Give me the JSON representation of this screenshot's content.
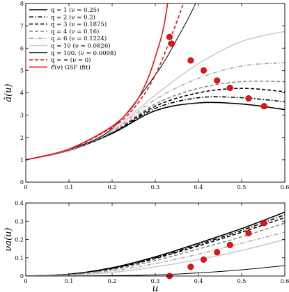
{
  "chart_data": [
    {
      "type": "line",
      "ylabel": "â(u)",
      "xlabel": "",
      "xlim": [
        0,
        0.6
      ],
      "ylim": [
        0,
        8
      ],
      "xticks": [
        "0",
        "0.1",
        "0.2",
        "0.3",
        "0.4",
        "0.5",
        "0.6"
      ],
      "yticks": [
        "0",
        "1",
        "2",
        "3",
        "4",
        "5",
        "6",
        "7",
        "8"
      ],
      "grid": false,
      "legend_position": "top-left",
      "series": [
        {
          "name": "q = 1 (ν = 0.25)",
          "color": "#000000",
          "dash": "solid",
          "x": [
            0,
            0.1,
            0.2,
            0.3,
            0.4,
            0.5,
            0.6
          ],
          "y": [
            1.0,
            1.42,
            2.18,
            3.2,
            3.55,
            3.5,
            3.25
          ]
        },
        {
          "name": "q = 2 (ν = 0.2)",
          "color": "#000000",
          "dash": "dashdot",
          "x": [
            0,
            0.1,
            0.2,
            0.3,
            0.4,
            0.5,
            0.6
          ],
          "y": [
            1.0,
            1.43,
            2.2,
            3.3,
            3.78,
            3.78,
            3.6
          ]
        },
        {
          "name": "q = 3 (ν = 0.1875)",
          "color": "#000000",
          "dash": "dashed",
          "x": [
            0,
            0.1,
            0.2,
            0.3,
            0.4,
            0.5,
            0.6
          ],
          "y": [
            1.0,
            1.43,
            2.22,
            3.4,
            4.0,
            4.2,
            4.05
          ]
        },
        {
          "name": "q = 4 (ν = 0.16)",
          "color": "#888888",
          "dash": "dashed",
          "x": [
            0,
            0.1,
            0.2,
            0.3,
            0.4,
            0.5,
            0.6
          ],
          "y": [
            1.0,
            1.43,
            2.24,
            3.5,
            4.2,
            4.5,
            4.5
          ]
        },
        {
          "name": "q = 6 (ν = 0.1224)",
          "color": "#aaaaaa",
          "dash": "dashdot",
          "x": [
            0,
            0.1,
            0.2,
            0.3,
            0.4,
            0.5,
            0.6
          ],
          "y": [
            1.0,
            1.44,
            2.28,
            3.7,
            4.65,
            5.2,
            5.35
          ]
        },
        {
          "name": "q = 10 (ν = 0.0826)",
          "color": "#cccccc",
          "dash": "solid",
          "x": [
            0,
            0.1,
            0.2,
            0.3,
            0.4,
            0.5,
            0.6
          ],
          "y": [
            1.0,
            1.45,
            2.33,
            3.9,
            5.3,
            6.3,
            6.75
          ]
        },
        {
          "name": "q = 100. (ν = 0.0098)",
          "color": "#000000",
          "dash": "solid",
          "thin": true,
          "x": [
            0,
            0.1,
            0.2,
            0.3,
            0.35,
            0.4,
            0.45
          ],
          "y": [
            1.0,
            1.46,
            2.4,
            4.8,
            6.4,
            8.3,
            11.0
          ]
        },
        {
          "name": "q = ∞ (ν = 0)",
          "color": "#ee1111",
          "dash": "dashed",
          "x": [
            0,
            0.1,
            0.2,
            0.25,
            0.3,
            0.35,
            0.4
          ],
          "y": [
            1.0,
            1.47,
            2.45,
            3.3,
            4.8,
            7.2,
            10.0
          ]
        },
        {
          "name": "𝒪(ν) GSF (fit)",
          "color": "#ee1111",
          "dash": "solid",
          "x": [
            0,
            0.1,
            0.2,
            0.25,
            0.28,
            0.3,
            0.32,
            0.34
          ],
          "y": [
            1.0,
            1.48,
            2.5,
            3.45,
            4.5,
            5.6,
            7.0,
            9.5
          ]
        }
      ],
      "markers": {
        "color": "#ee1111",
        "x": [
          0.333,
          0.338,
          0.382,
          0.412,
          0.443,
          0.473,
          0.516,
          0.552
        ],
        "y": [
          6.5,
          6.2,
          5.45,
          5.0,
          4.55,
          4.22,
          3.75,
          3.4
        ]
      }
    },
    {
      "type": "line",
      "ylabel": "νa(u)",
      "xlabel": "u",
      "xlim": [
        0,
        0.6
      ],
      "ylim": [
        0,
        0.4
      ],
      "xticks": [
        "0",
        "0.1",
        "0.2",
        "0.3",
        "0.4",
        "0.5",
        "0.6"
      ],
      "yticks": [
        "0",
        "0.1",
        "0.2",
        "0.3",
        "0.4"
      ],
      "grid": false,
      "series": [
        {
          "color": "#000000",
          "dash": "solid",
          "x": [
            0,
            0.1,
            0.2,
            0.3,
            0.4,
            0.5,
            0.6
          ],
          "y": [
            0.0,
            0.01,
            0.045,
            0.105,
            0.18,
            0.26,
            0.35
          ]
        },
        {
          "color": "#000000",
          "dash": "dashdot",
          "x": [
            0,
            0.1,
            0.2,
            0.3,
            0.4,
            0.5,
            0.6
          ],
          "y": [
            0.0,
            0.009,
            0.042,
            0.1,
            0.172,
            0.25,
            0.335
          ]
        },
        {
          "color": "#000000",
          "dash": "dashed",
          "x": [
            0,
            0.1,
            0.2,
            0.3,
            0.4,
            0.5,
            0.6
          ],
          "y": [
            0.0,
            0.008,
            0.04,
            0.096,
            0.165,
            0.24,
            0.32
          ]
        },
        {
          "color": "#888888",
          "dash": "dashed",
          "x": [
            0,
            0.1,
            0.2,
            0.3,
            0.4,
            0.5,
            0.6
          ],
          "y": [
            0.0,
            0.007,
            0.035,
            0.085,
            0.148,
            0.215,
            0.29
          ]
        },
        {
          "color": "#aaaaaa",
          "dash": "dashdot",
          "x": [
            0,
            0.1,
            0.2,
            0.3,
            0.4,
            0.5,
            0.6
          ],
          "y": [
            0.0,
            0.005,
            0.028,
            0.068,
            0.12,
            0.18,
            0.24
          ]
        },
        {
          "color": "#cccccc",
          "dash": "solid",
          "x": [
            0,
            0.1,
            0.2,
            0.3,
            0.4,
            0.5,
            0.6
          ],
          "y": [
            0.0,
            0.004,
            0.02,
            0.05,
            0.09,
            0.14,
            0.2
          ]
        },
        {
          "color": "#000000",
          "dash": "solid",
          "thin": true,
          "x": [
            0,
            0.1,
            0.2,
            0.3,
            0.4,
            0.5,
            0.6
          ],
          "y": [
            0.0,
            0.0,
            0.002,
            0.006,
            0.017,
            0.034,
            0.057
          ]
        }
      ],
      "markers": {
        "color": "#ee1111",
        "x": [
          0.333,
          0.382,
          0.412,
          0.443,
          0.473,
          0.516,
          0.552
        ],
        "y": [
          0.0,
          0.05,
          0.09,
          0.13,
          0.17,
          0.235,
          0.29
        ]
      }
    }
  ]
}
